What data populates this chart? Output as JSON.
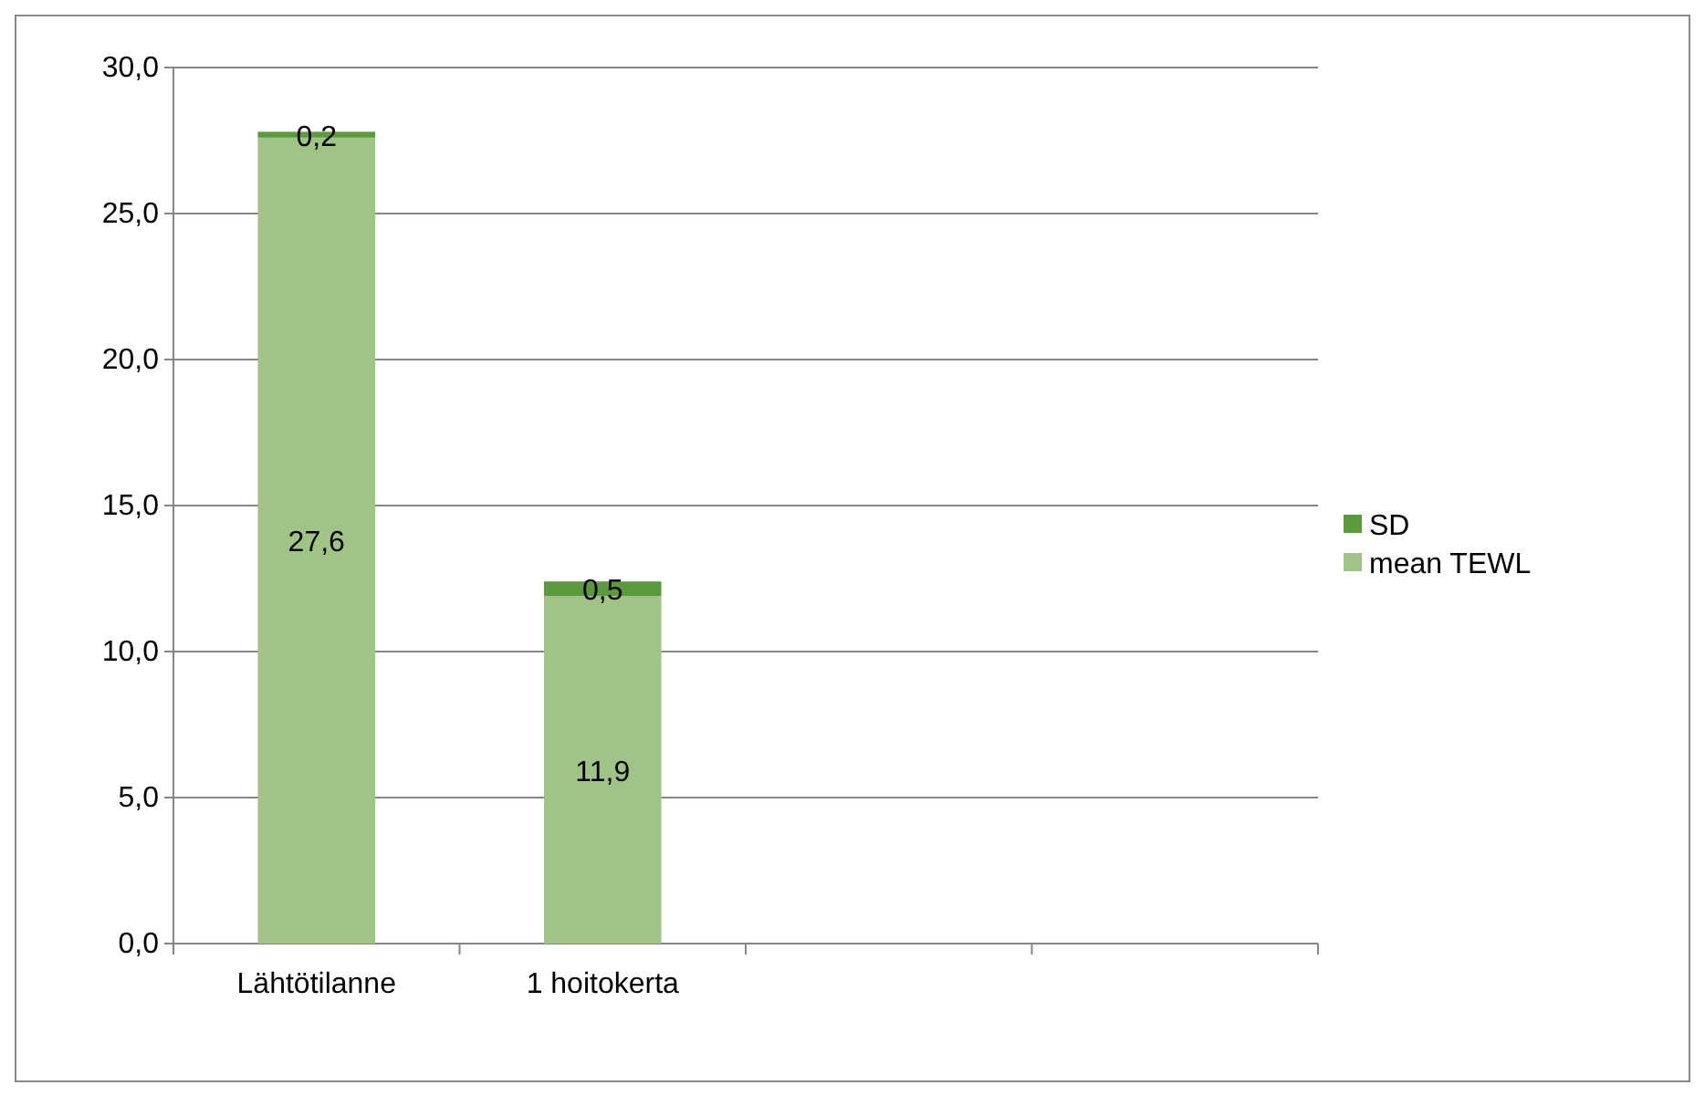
{
  "chart_data": {
    "type": "bar",
    "stacked": true,
    "categories": [
      "Lähtötilanne",
      "1 hoitokerta",
      null,
      null
    ],
    "series": [
      {
        "name": "mean TEWL",
        "color": "#9fc485",
        "values": [
          27.6,
          11.9,
          null,
          null
        ],
        "value_labels": [
          "27,6",
          "11,9",
          null,
          null
        ]
      },
      {
        "name": "SD",
        "color": "#5a9a3c",
        "values": [
          0.2,
          0.5,
          null,
          null
        ],
        "value_labels": [
          "0,2",
          "0,5",
          null,
          null
        ]
      }
    ],
    "ylim": [
      0,
      30
    ],
    "yticks": [
      {
        "value": 0,
        "label": "0,0"
      },
      {
        "value": 5,
        "label": "5,0"
      },
      {
        "value": 10,
        "label": "10,0"
      },
      {
        "value": 15,
        "label": "15,0"
      },
      {
        "value": 20,
        "label": "20,0"
      },
      {
        "value": 25,
        "label": "25,0"
      },
      {
        "value": 30,
        "label": "30,0"
      }
    ],
    "grid": "y",
    "legend": "right"
  }
}
